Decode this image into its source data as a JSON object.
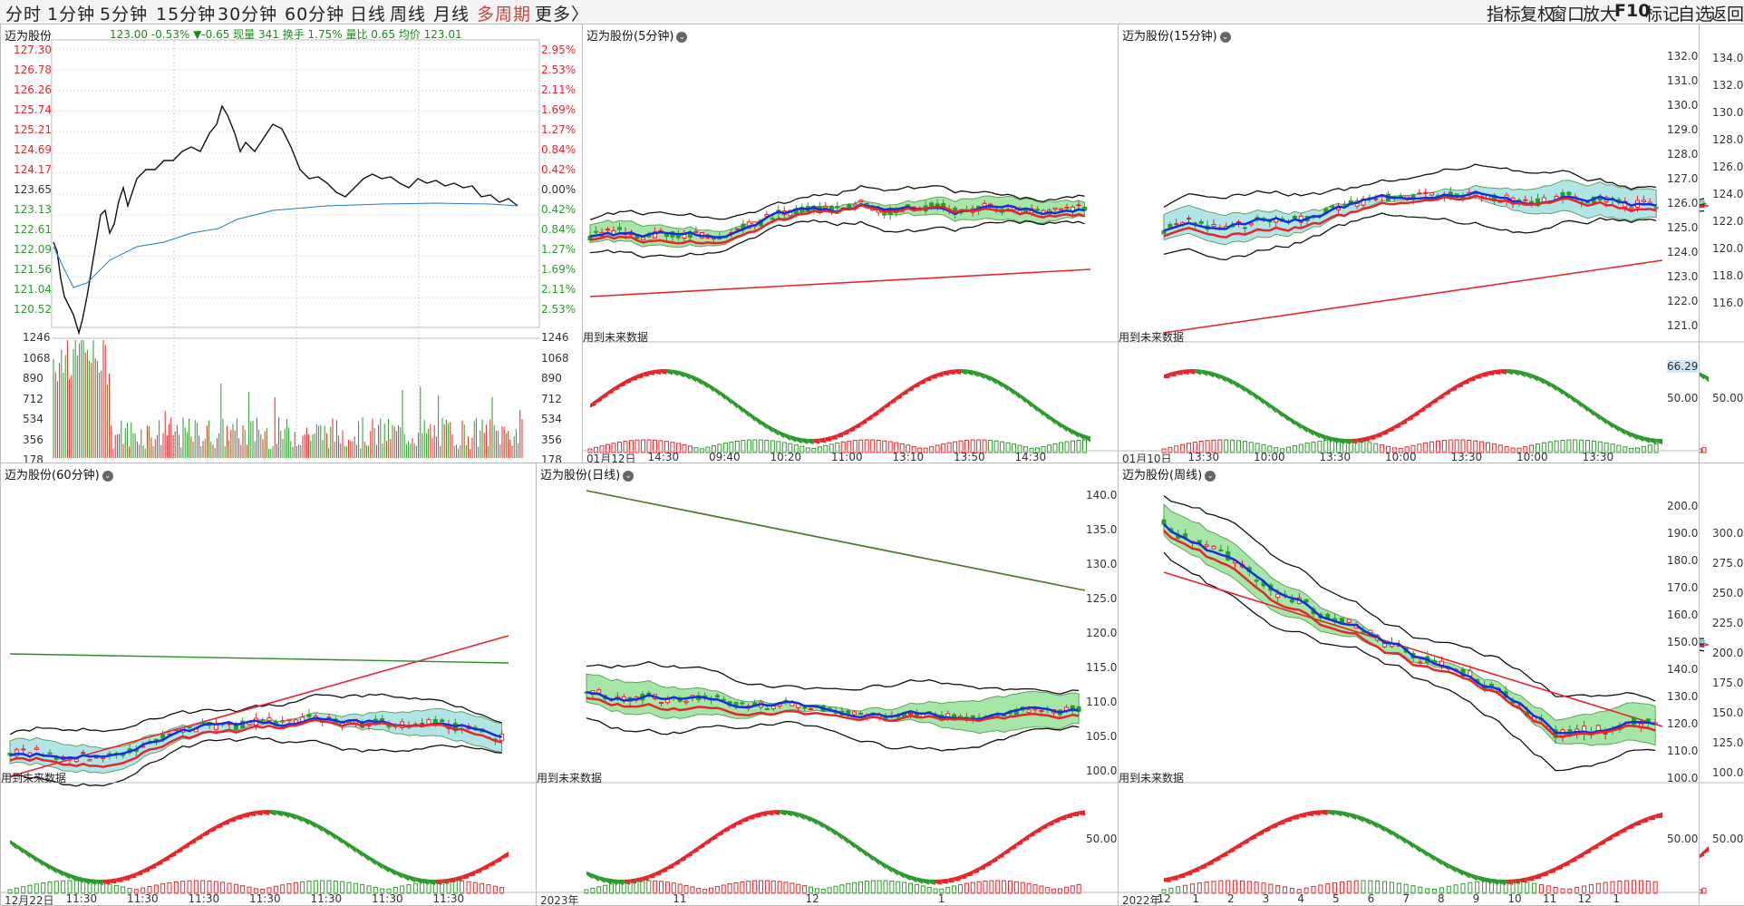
{
  "periods": [
    "分时",
    "1分钟",
    "5分钟",
    "15分钟",
    "30分钟",
    "60分钟",
    "日线",
    "周线",
    "月线",
    "多周期",
    "更多〉"
  ],
  "active_period": "多周期",
  "right_tools": [
    "指标",
    "复权",
    "窗口",
    "放大",
    "F10",
    "标记",
    "自选",
    "返回"
  ],
  "stock": "迈为股份",
  "intraday": {
    "title": "迈为股份",
    "info": "123.00  -0.53%  ▼-0.65 现量 341 换手 1.75% 量比 0.65 均价 123.01",
    "price_ticks": [
      "127.30",
      "126.78",
      "126.26",
      "125.74",
      "125.21",
      "124.69",
      "124.17",
      "123.65",
      "123.13",
      "122.61",
      "122.09",
      "121.56",
      "121.04",
      "120.52"
    ],
    "pct_ticks": [
      "2.95%",
      "2.53%",
      "2.11%",
      "1.69%",
      "1.27%",
      "0.84%",
      "0.42%",
      "0.00%",
      "0.42%",
      "0.84%",
      "1.27%",
      "1.69%",
      "2.11%",
      "2.53%"
    ],
    "vol_ticks": [
      "1246",
      "1068",
      "890",
      "712",
      "534",
      "356",
      "178"
    ]
  },
  "panels": {
    "m5": {
      "title": "迈为股份(5分钟)",
      "future": "用到未来数据",
      "ticks": [
        "01月12日",
        "14:30",
        "09:40",
        "10:20",
        "11:00",
        "13:10",
        "13:50",
        "14:30"
      ]
    },
    "m15": {
      "title": "迈为股份(15分钟)",
      "future": "用到未来数据",
      "scale": [
        "132.0",
        "131.0",
        "130.0",
        "129.0",
        "128.0",
        "127.0",
        "126.0",
        "125.0",
        "124.0",
        "123.0",
        "122.0",
        "121.0"
      ],
      "ind_value": "66.29",
      "ind_mid": "50.00",
      "ticks": [
        "01月10日",
        "13:30",
        "10:00",
        "13:30",
        "10:00",
        "13:30",
        "10:00",
        "13:30"
      ]
    },
    "m30": {
      "scale": [
        "134.0",
        "132.0",
        "130.0",
        "128.0",
        "126.0",
        "124.0",
        "122.0",
        "120.0",
        "118.0",
        "116.0"
      ],
      "ind_mid": "50.00"
    },
    "m60": {
      "title": "迈为股份(60分钟)",
      "future": "用到未来数据",
      "ticks": [
        "12月22日",
        "11:30",
        "11:30",
        "11:30",
        "11:30",
        "11:30",
        "11:30",
        "11:30"
      ]
    },
    "day": {
      "title": "迈为股份(日线)",
      "future": "用到未来数据",
      "scale": [
        "140.0",
        "135.0",
        "130.0",
        "125.0",
        "120.0",
        "115.0",
        "110.0",
        "105.0",
        "100.0"
      ],
      "ind_mid": "50.00",
      "ticks": [
        "2023年",
        "11",
        "12",
        "1"
      ]
    },
    "week": {
      "title": "迈为股份(周线)",
      "future": "用到未来数据",
      "scale": [
        "200.0",
        "190.0",
        "180.0",
        "170.0",
        "160.0",
        "150.0",
        "140.0",
        "130.0",
        "120.0",
        "110.0",
        "100.0"
      ],
      "ind_mid": "50.00",
      "ticks": [
        "2022年",
        "12",
        "1",
        "2",
        "3",
        "4",
        "5",
        "6",
        "7",
        "8",
        "9",
        "10",
        "11",
        "12",
        "1"
      ]
    },
    "month": {
      "scale": [
        "300.0",
        "275.0",
        "250.0",
        "225.0",
        "200.0",
        "175.0",
        "150.0",
        "125.0",
        "100.0"
      ],
      "ind_mid": "50.00"
    }
  },
  "colors": {
    "up": "#e8252b",
    "down": "#2d9a2d",
    "blue": "#1030e0",
    "cloud_green": "#90e090",
    "cloud_cyan": "#a0e0e0"
  }
}
